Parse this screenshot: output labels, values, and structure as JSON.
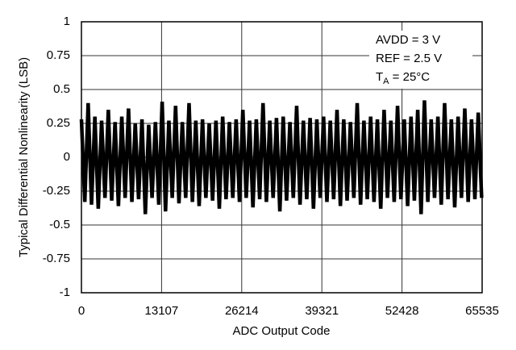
{
  "chart_data": {
    "type": "line",
    "xlabel": "ADC Output Code",
    "ylabel": "Typical Differential Nonlinearity (LSB)",
    "annotations": [
      "AVDD = 3 V",
      "REF = 2.5 V"
    ],
    "annotation_temp": {
      "main": "T",
      "sub": "A",
      "rest": " = 25°C"
    },
    "xlim": [
      0,
      65535
    ],
    "ylim": [
      -1,
      1
    ],
    "xticks": [
      0,
      13107,
      26214,
      39321,
      52428,
      65535
    ],
    "yticks": [
      -1,
      -0.75,
      -0.5,
      -0.25,
      0,
      0.25,
      0.5,
      0.75,
      1
    ],
    "grid": true,
    "x": [
      0,
      550,
      1100,
      1650,
      2200,
      2750,
      3300,
      3850,
      4400,
      4950,
      5500,
      6050,
      6600,
      7150,
      7700,
      8250,
      8800,
      9350,
      9900,
      10450,
      11000,
      11550,
      12100,
      12650,
      13200,
      13750,
      14300,
      14850,
      15400,
      15950,
      16500,
      17050,
      17600,
      18150,
      18700,
      19250,
      19800,
      20350,
      20900,
      21450,
      22000,
      22550,
      23100,
      23650,
      24200,
      24750,
      25300,
      25850,
      26400,
      26950,
      27500,
      28050,
      28600,
      29150,
      29700,
      30250,
      30800,
      31350,
      31900,
      32450,
      33000,
      33550,
      34100,
      34650,
      35200,
      35750,
      36300,
      36850,
      37400,
      37950,
      38500,
      39050,
      39600,
      40150,
      40700,
      41250,
      41800,
      42350,
      42900,
      43450,
      44000,
      44550,
      45100,
      45650,
      46200,
      46750,
      47300,
      47850,
      48400,
      48950,
      49500,
      50050,
      50600,
      51150,
      51700,
      52250,
      52800,
      53350,
      53900,
      54450,
      55000,
      55550,
      56100,
      56650,
      57200,
      57750,
      58300,
      58850,
      59400,
      59950,
      60500,
      61050,
      61600,
      62150,
      62700,
      63250,
      63800,
      64350,
      64900,
      65450
    ],
    "series": [
      {
        "color": "#000000",
        "values": [
          0.28,
          -0.33,
          0.4,
          -0.35,
          0.3,
          -0.38,
          0.27,
          -0.3,
          0.35,
          -0.32,
          0.26,
          -0.36,
          0.3,
          -0.3,
          0.36,
          -0.33,
          0.25,
          -0.31,
          0.28,
          -0.42,
          0.24,
          -0.3,
          0.26,
          -0.35,
          0.41,
          -0.4,
          0.27,
          -0.3,
          0.38,
          -0.34,
          0.26,
          -0.3,
          0.4,
          -0.33,
          0.27,
          -0.36,
          0.28,
          -0.3,
          0.25,
          -0.32,
          0.27,
          -0.38,
          0.3,
          -0.31,
          0.26,
          -0.3,
          0.28,
          -0.33,
          0.35,
          -0.3,
          0.27,
          -0.37,
          0.28,
          -0.31,
          0.4,
          -0.33,
          0.27,
          -0.3,
          0.29,
          -0.4,
          0.3,
          -0.32,
          0.26,
          -0.3,
          0.38,
          -0.35,
          0.27,
          -0.31,
          0.29,
          -0.38,
          0.28,
          -0.3,
          0.3,
          -0.33,
          0.27,
          -0.31,
          0.35,
          -0.36,
          0.28,
          -0.32,
          0.26,
          -0.3,
          0.4,
          -0.35,
          0.27,
          -0.31,
          0.3,
          -0.33,
          0.28,
          -0.38,
          0.35,
          -0.3,
          0.27,
          -0.33,
          0.38,
          -0.31,
          0.28,
          -0.36,
          0.3,
          -0.32,
          0.35,
          -0.42,
          0.42,
          -0.33,
          0.28,
          -0.3,
          0.3,
          -0.35,
          0.4,
          -0.31,
          0.28,
          -0.37,
          0.3,
          -0.3,
          0.36,
          -0.33,
          0.28,
          -0.31,
          0.33,
          -0.3
        ]
      }
    ]
  }
}
